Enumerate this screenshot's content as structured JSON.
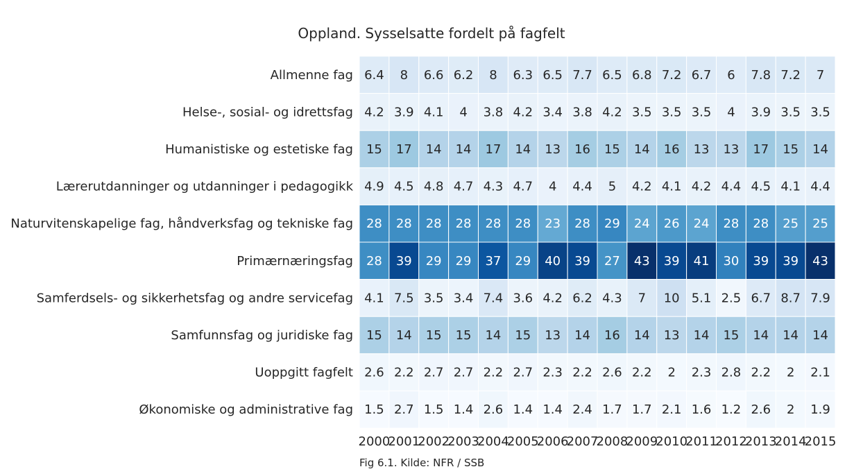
{
  "chart_data": {
    "type": "heatmap",
    "title": "Oppland. Sysselsatte fordelt på fagfelt",
    "caption": "Fig 6.1. Kilde: NFR / SSB",
    "xlabel": "",
    "ylabel": "",
    "x": [
      "2000",
      "2001",
      "2002",
      "2003",
      "2004",
      "2005",
      "2006",
      "2007",
      "2008",
      "2009",
      "2010",
      "2011",
      "2012",
      "2013",
      "2014",
      "2015"
    ],
    "y": [
      "Allmenne fag",
      "Helse-, sosial- og idrettsfag",
      "Humanistiske og estetiske fag",
      "Lærerutdanninger og utdanninger i pedagogikk",
      "Naturvitenskapelige fag, håndverksfag og tekniske fag",
      "Primærnæringsfag",
      "Samferdsels- og sikkerhetsfag og andre servicefag",
      "Samfunnsfag og juridiske fag",
      "Uoppgitt fagfelt",
      "Økonomiske og administrative fag"
    ],
    "values": [
      [
        6.4,
        8,
        6.6,
        6.2,
        8,
        6.3,
        6.5,
        7.7,
        6.5,
        6.8,
        7.2,
        6.7,
        6,
        7.8,
        7.2,
        7
      ],
      [
        4.2,
        3.9,
        4.1,
        4,
        3.8,
        4.2,
        3.4,
        3.8,
        4.2,
        3.5,
        3.5,
        3.5,
        4,
        3.9,
        3.5,
        3.5
      ],
      [
        15,
        17,
        14,
        14,
        17,
        14,
        13,
        16,
        15,
        14,
        16,
        13,
        13,
        17,
        15,
        14
      ],
      [
        4.9,
        4.5,
        4.8,
        4.7,
        4.3,
        4.7,
        4,
        4.4,
        5,
        4.2,
        4.1,
        4.2,
        4.4,
        4.5,
        4.1,
        4.4
      ],
      [
        28,
        28,
        28,
        28,
        28,
        28,
        23,
        28,
        29,
        24,
        26,
        24,
        28,
        28,
        25,
        25
      ],
      [
        28,
        39,
        29,
        29,
        37,
        29,
        40,
        39,
        27,
        43,
        39,
        41,
        30,
        39,
        39,
        43
      ],
      [
        4.1,
        7.5,
        3.5,
        3.4,
        7.4,
        3.6,
        4.2,
        6.2,
        4.3,
        7,
        10,
        5.1,
        2.5,
        6.7,
        8.7,
        7.9
      ],
      [
        15,
        14,
        15,
        15,
        14,
        15,
        13,
        14,
        16,
        14,
        13,
        14,
        15,
        14,
        14,
        14
      ],
      [
        2.6,
        2.2,
        2.7,
        2.7,
        2.2,
        2.7,
        2.3,
        2.2,
        2.6,
        2.2,
        2,
        2.3,
        2.8,
        2.2,
        2,
        2.1
      ],
      [
        1.5,
        2.7,
        1.5,
        1.4,
        2.6,
        1.4,
        1.4,
        2.4,
        1.7,
        1.7,
        2.1,
        1.6,
        1.2,
        2.6,
        2,
        1.9
      ]
    ],
    "colormap": "Blues",
    "color_range": [
      1.2,
      43
    ],
    "colorbar": false,
    "grid": false
  }
}
